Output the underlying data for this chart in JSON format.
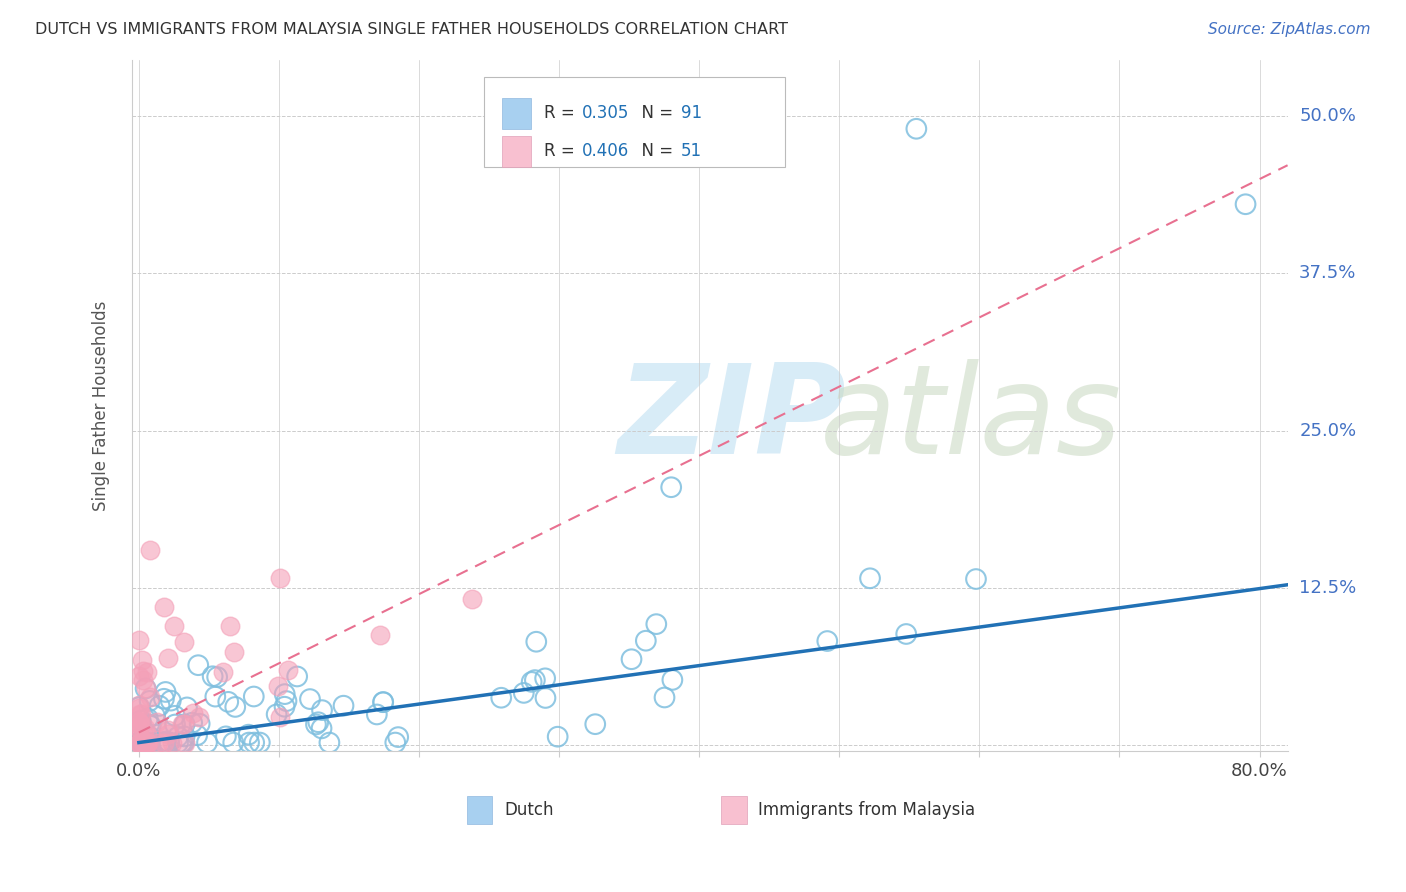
{
  "title": "DUTCH VS IMMIGRANTS FROM MALAYSIA SINGLE FATHER HOUSEHOLDS CORRELATION CHART",
  "source": "Source: ZipAtlas.com",
  "ylabel": "Single Father Households",
  "yticks": [
    0.0,
    0.125,
    0.25,
    0.375,
    0.5
  ],
  "ytick_labels": [
    "",
    "12.5%",
    "25.0%",
    "37.5%",
    "50.0%"
  ],
  "xlim": [
    -0.005,
    0.82
  ],
  "ylim": [
    -0.005,
    0.545
  ],
  "dutch_color": "#7fbfdf",
  "malaysia_color": "#f4a0b8",
  "dutch_line_color": "#2171b5",
  "malaysia_line_color": "#e87090",
  "dutch_R": 0.305,
  "dutch_N": 91,
  "malaysia_R": 0.406,
  "malaysia_N": 51,
  "legend_dutch_color": "#a8d0f0",
  "legend_malaysia_color": "#f8c0d0",
  "legend_text_color": "#2060c0",
  "legend_label_color": "#333333"
}
